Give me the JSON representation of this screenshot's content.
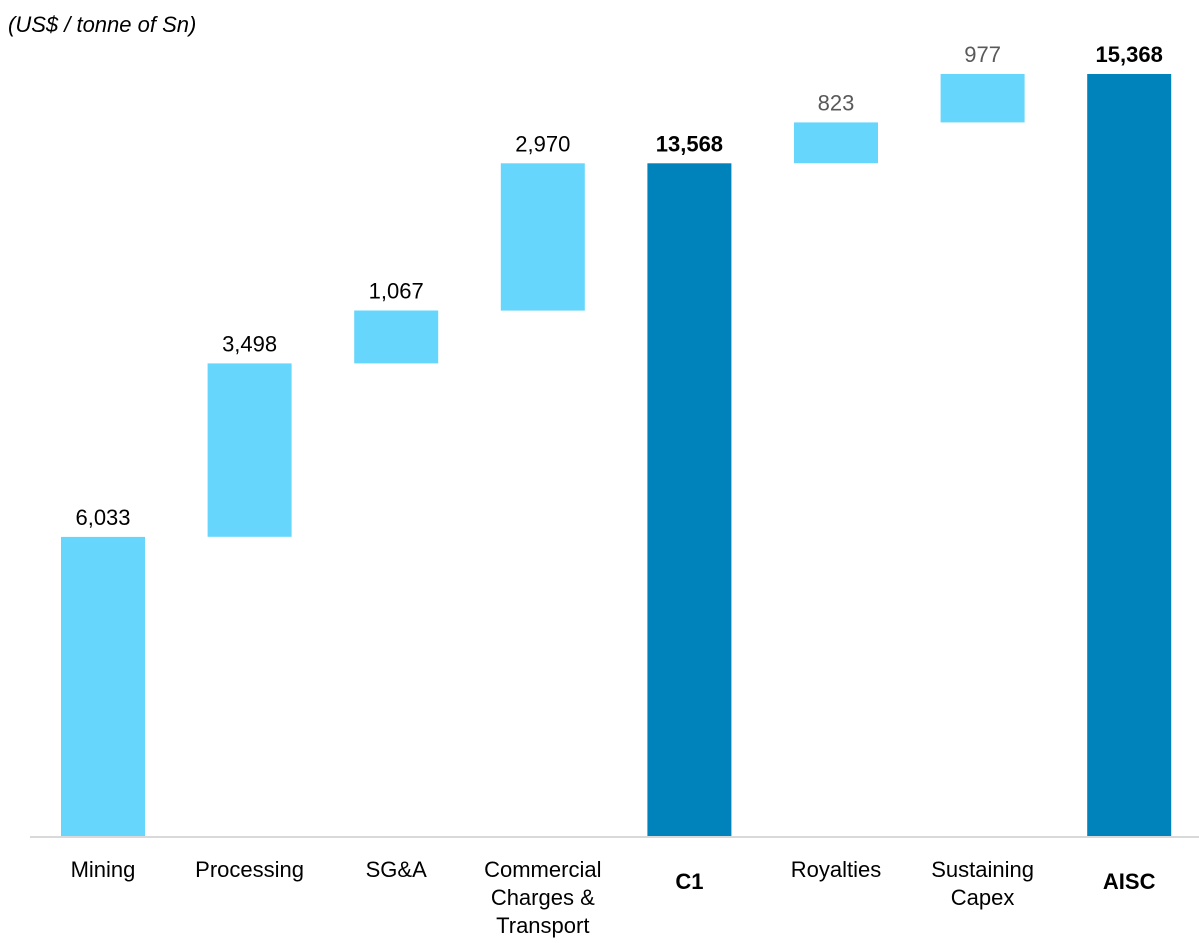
{
  "chart_data": {
    "type": "bar",
    "subtype": "waterfall",
    "unit_label": "(US$ / tonne of Sn)",
    "categories": [
      "Mining",
      "Processing",
      "SG&A",
      "Commercial Charges & Transport",
      "C1",
      "Royalties",
      "Sustaining Capex",
      "AISC"
    ],
    "category_lines": [
      [
        "Mining"
      ],
      [
        "Processing"
      ],
      [
        "SG&A"
      ],
      [
        "Commercial",
        "Charges &",
        "Transport"
      ],
      [
        "C1"
      ],
      [
        "Royalties"
      ],
      [
        "Sustaining",
        "Capex"
      ],
      [
        "AISC"
      ]
    ],
    "values": [
      6033,
      3498,
      1067,
      2970,
      13568,
      823,
      977,
      15368
    ],
    "value_labels": [
      "6,033",
      "3,498",
      "1,067",
      "2,970",
      "13,568",
      "823",
      "977",
      "15,368"
    ],
    "kinds": [
      "step",
      "step",
      "step",
      "step",
      "total",
      "step",
      "step",
      "total"
    ],
    "ylim": [
      0,
      15368
    ],
    "grid": false,
    "legend": "none",
    "colors": {
      "step": "#66D6FC",
      "total": "#0083BB",
      "axis": "#D9D9D9",
      "label": "#000000",
      "muted_label": "#595959"
    }
  }
}
